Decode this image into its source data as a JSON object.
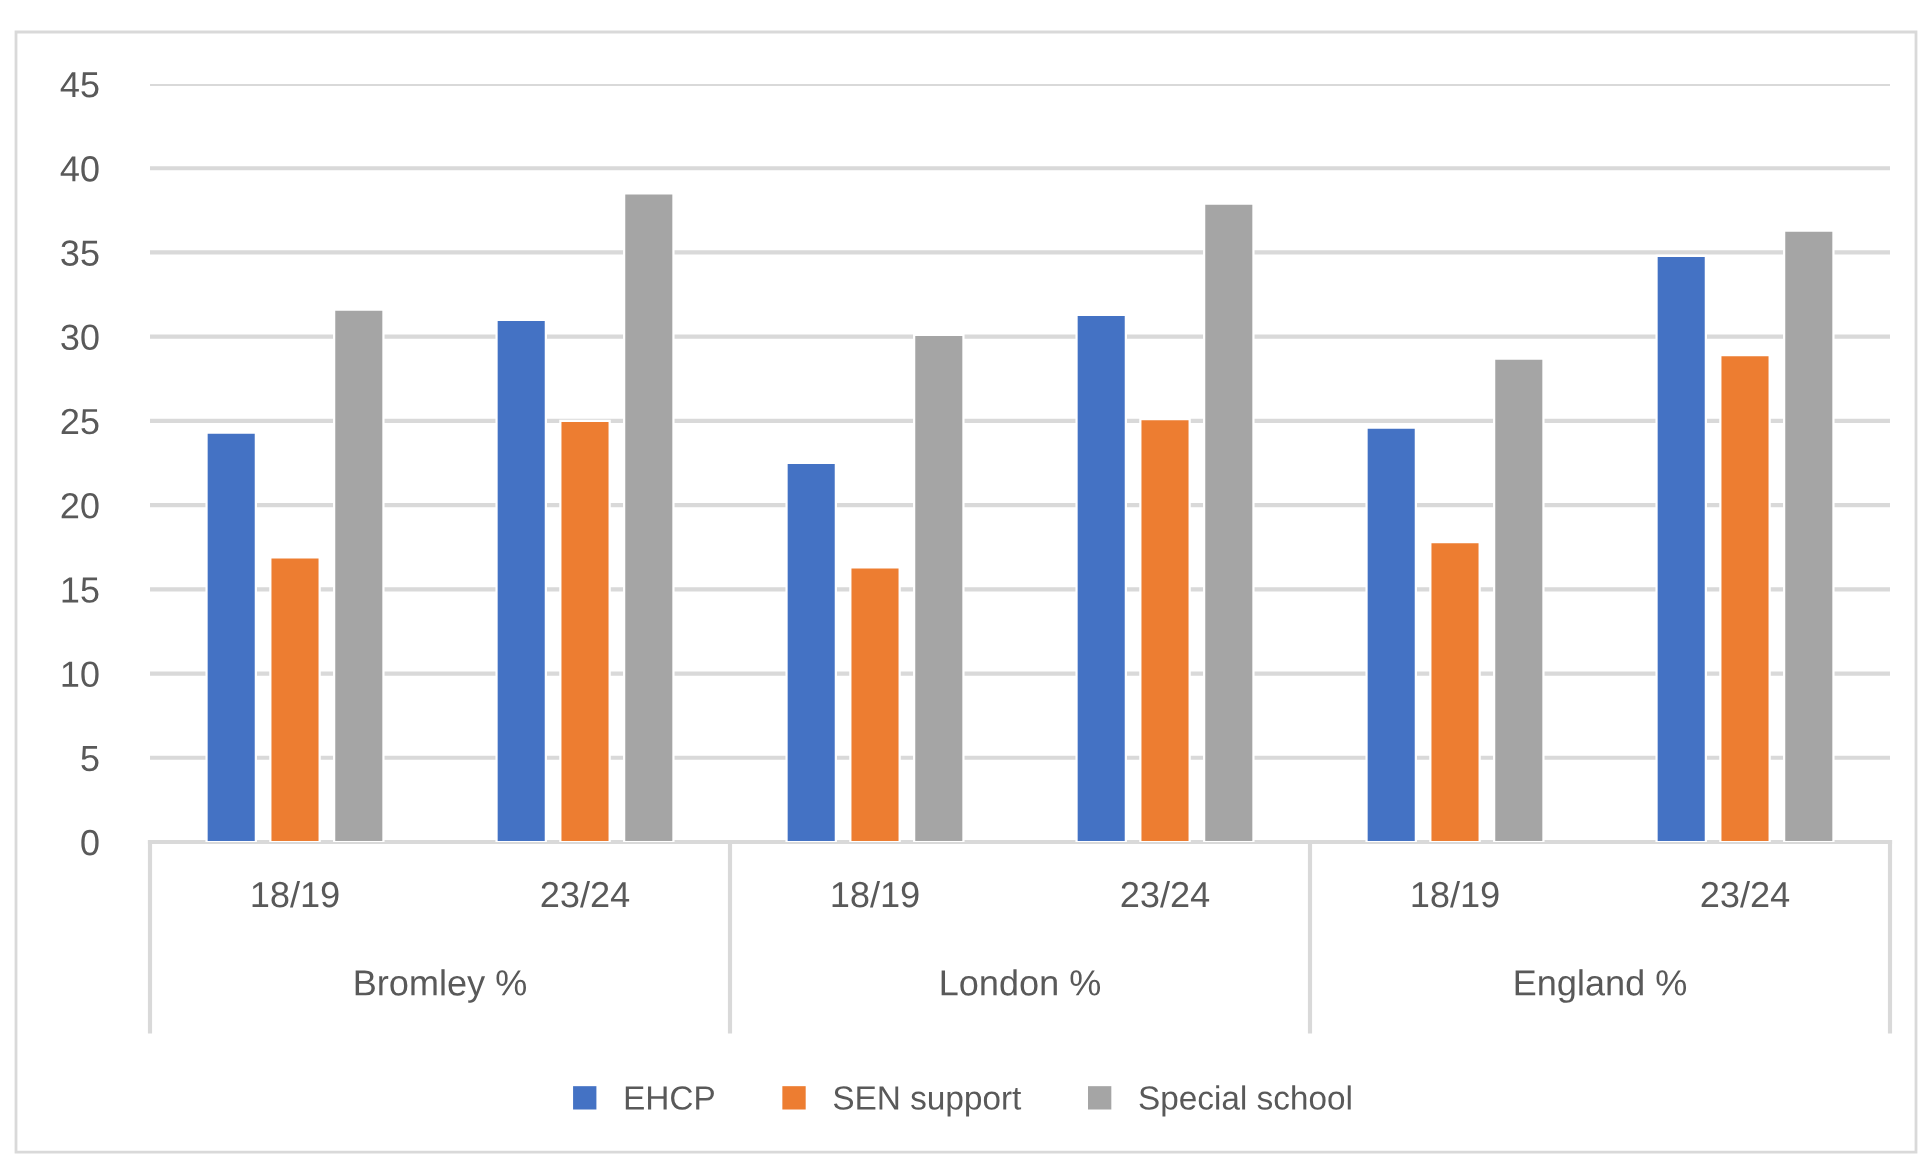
{
  "chart_data": {
    "type": "bar",
    "categories": [
      "18/19",
      "23/24",
      "18/19",
      "23/24",
      "18/19",
      "23/24"
    ],
    "annotations": [
      "Bromley %",
      "London %",
      "England %"
    ],
    "series": [
      {
        "name": "EHCP",
        "color": "#4472c4",
        "values": [
          24.3,
          31.0,
          22.5,
          31.3,
          24.6,
          34.8
        ]
      },
      {
        "name": "SEN support",
        "color": "#ed7d31",
        "values": [
          16.9,
          25.0,
          16.3,
          25.1,
          17.8,
          28.9
        ]
      },
      {
        "name": "Special school",
        "color": "#a5a5a5",
        "values": [
          31.6,
          38.5,
          30.1,
          37.9,
          28.7,
          36.3
        ]
      }
    ],
    "ylim": [
      0,
      45
    ],
    "yticks": [
      0,
      5,
      10,
      15,
      20,
      25,
      30,
      35,
      40,
      45
    ],
    "grid": "y",
    "legend": "bottom"
  }
}
